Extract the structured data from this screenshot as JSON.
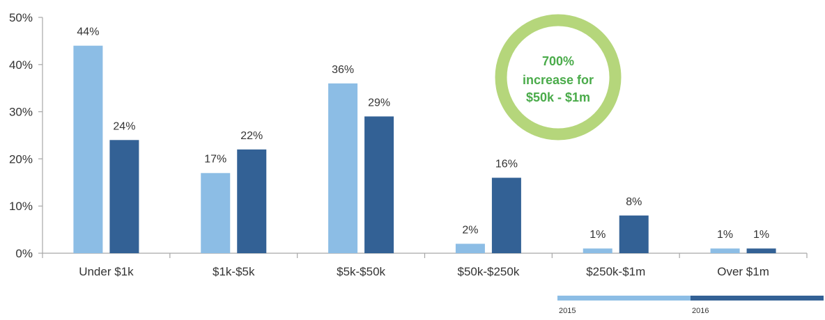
{
  "chart_data": {
    "type": "bar",
    "categories": [
      "Under $1k",
      "$1k-$5k",
      "$5k-$50k",
      "$50k-$250k",
      "$250k-$1m",
      "Over $1m"
    ],
    "series": [
      {
        "name": "2015",
        "values": [
          44,
          17,
          36,
          2,
          1,
          1
        ],
        "labels": [
          "44%",
          "17%",
          "36%",
          "2%",
          "1%",
          "1%"
        ],
        "color": "#8cbde5"
      },
      {
        "name": "2016",
        "values": [
          24,
          22,
          29,
          16,
          8,
          1
        ],
        "labels": [
          "24%",
          "22%",
          "29%",
          "16%",
          "8%",
          "1%"
        ],
        "color": "#336195"
      }
    ],
    "y_ticks": [
      0,
      10,
      20,
      30,
      40,
      50
    ],
    "y_tick_labels": [
      "0%",
      "10%",
      "20%",
      "30%",
      "40%",
      "50%"
    ],
    "ylim": [
      0,
      50
    ],
    "legend_placement": "bottom-right",
    "grid": false
  },
  "callout": {
    "line1": "700%",
    "line2": "increase for",
    "line3": "$50k - $1m",
    "ring_color": "#b5d67b",
    "text_color": "#4aab4a"
  },
  "colors": {
    "axis": "#a6a6a6"
  }
}
